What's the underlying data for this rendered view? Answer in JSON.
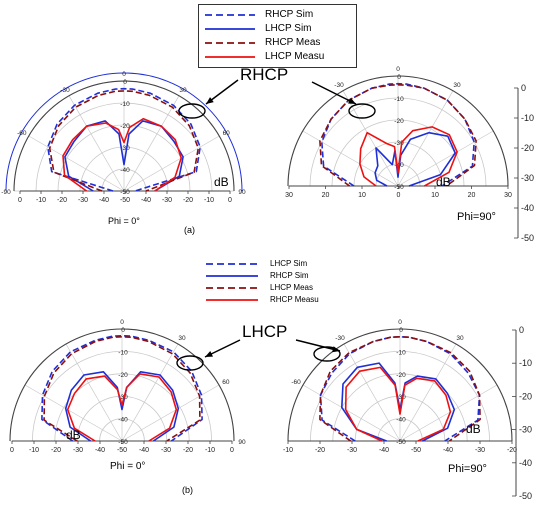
{
  "colors": {
    "blue": "#1f2fd6",
    "darkred": "#8b0f0f",
    "red": "#ee1111",
    "axis": "#777777",
    "grid": "#c9c9c9"
  },
  "legend_a": [
    {
      "label": "RHCP Sim",
      "color": "#1f2fd6",
      "dash": "dashed"
    },
    {
      "label": "LHCP Sim",
      "color": "#1f2fd6",
      "dash": "solid"
    },
    {
      "label": "RHCP Meas",
      "color": "#8b0f0f",
      "dash": "dashed"
    },
    {
      "label": "LHCP Measu",
      "color": "#ee1111",
      "dash": "solid"
    }
  ],
  "legend_b": [
    {
      "label": "LHCP Sim",
      "color": "#1f2fd6",
      "dash": "dashed"
    },
    {
      "label": "RHCP Sim",
      "color": "#1f2fd6",
      "dash": "solid"
    },
    {
      "label": "LHCP Meas",
      "color": "#8b0f0f",
      "dash": "dashed"
    },
    {
      "label": "RHCP Measu",
      "color": "#ee1111",
      "dash": "solid"
    }
  ],
  "labels": {
    "callout_a": "RHCP",
    "callout_b": "LHCP",
    "panel_a": "(a)",
    "panel_b": "(b)"
  },
  "side_axis_a": {
    "ticks": [
      "0",
      "-10",
      "-20",
      "-30",
      "-40",
      "-50"
    ]
  },
  "side_axis_b": {
    "ticks": [
      "0",
      "-10",
      "-20",
      "-30",
      "-40",
      "-50"
    ]
  },
  "chart_data": [
    {
      "type": "polar-line",
      "panel": "a",
      "name": "Phi = 0°",
      "cut_label": "Phi = 0°",
      "unit": "dB",
      "rlim": [
        -50,
        0
      ],
      "radial_ticks": [
        "0",
        "-10",
        "-20",
        "-30",
        "-40",
        "-50"
      ],
      "angle_ticks": [
        "0",
        "30",
        "60",
        "90",
        "-30",
        "-60",
        "-90"
      ],
      "bottom_ticks": [
        "0",
        "-10",
        "-20",
        "-30",
        "-40",
        "-50",
        "-40",
        "-30",
        "-20",
        "-10",
        "0"
      ],
      "angles": [
        -90,
        -75,
        -60,
        -45,
        -30,
        -15,
        -5,
        0,
        5,
        15,
        30,
        45,
        60,
        75,
        90
      ],
      "series": [
        {
          "name": "RHCP Sim",
          "color": "#1f2fd6",
          "dash": "dashed",
          "values": [
            -45,
            -16,
            -10,
            -7,
            -5,
            -4,
            -3.5,
            -3.5,
            -3.5,
            -4,
            -5,
            -7,
            -10,
            -16,
            -45
          ]
        },
        {
          "name": "LHCP Sim",
          "color": "#1f2fd6",
          "dash": "solid",
          "values": [
            -36,
            -24,
            -19,
            -18,
            -16,
            -17,
            -24,
            -38,
            -24,
            -17,
            -16,
            -18,
            -19,
            -24,
            -36
          ]
        },
        {
          "name": "RHCP Meas",
          "color": "#8b0f0f",
          "dash": "dashed",
          "values": [
            -40,
            -17,
            -11,
            -8,
            -6,
            -5,
            -4.5,
            -4.5,
            -4.5,
            -5,
            -6,
            -8,
            -11,
            -17,
            -40
          ]
        },
        {
          "name": "LHCP Measu",
          "color": "#ee1111",
          "dash": "solid",
          "values": [
            -33,
            -22,
            -18,
            -17,
            -16,
            -18,
            -22,
            -28,
            -21,
            -16,
            -16,
            -17,
            -20,
            -26,
            -36
          ]
        }
      ]
    },
    {
      "type": "polar-line",
      "panel": "a",
      "name": "Phi=90°",
      "cut_label": "Phi=90°",
      "unit": "dB",
      "rlim": [
        -50,
        0
      ],
      "radial_ticks": [
        "0",
        "-10",
        "-20",
        "-30",
        "-40",
        "-50"
      ],
      "angle_ticks": [
        "0",
        "30",
        "-30"
      ],
      "bottom_ticks": [
        "30",
        "20",
        "10",
        "0",
        "10",
        "20",
        "30"
      ],
      "angles": [
        -90,
        -75,
        -60,
        -45,
        -30,
        -15,
        -5,
        0,
        5,
        15,
        30,
        45,
        60,
        75,
        90
      ],
      "series": [
        {
          "name": "RHCP Sim",
          "color": "#1f2fd6",
          "dash": "dashed",
          "values": [
            -30,
            -15,
            -10,
            -7,
            -5,
            -4,
            -3.5,
            -3.5,
            -3.5,
            -4,
            -5,
            -7,
            -10,
            -15,
            -30
          ]
        },
        {
          "name": "LHCP Sim",
          "color": "#1f2fd6",
          "dash": "solid",
          "values": [
            -45,
            -40,
            -38,
            -37,
            -30,
            -40,
            -34,
            -46,
            -36,
            -28,
            -22,
            -18,
            -20,
            -30,
            -45
          ]
        },
        {
          "name": "RHCP Meas",
          "color": "#8b0f0f",
          "dash": "dashed",
          "values": [
            -28,
            -14,
            -9,
            -7,
            -5,
            -4,
            -4,
            -4,
            -4,
            -4,
            -5,
            -7,
            -9,
            -14,
            -28
          ]
        },
        {
          "name": "LHCP Measu",
          "color": "#ee1111",
          "dash": "solid",
          "values": [
            -40,
            -34,
            -30,
            -26,
            -22,
            -30,
            -32,
            -44,
            -30,
            -24,
            -19,
            -17,
            -19,
            -26,
            -38
          ]
        }
      ]
    },
    {
      "type": "polar-line",
      "panel": "b",
      "name": "Phi = 0°",
      "cut_label": "Phi = 0°",
      "unit": "dB",
      "rlim": [
        -50,
        0
      ],
      "radial_ticks": [
        "0",
        "-10",
        "-20",
        "-30",
        "-40",
        "-50"
      ],
      "angle_ticks": [
        "0",
        "30",
        "60",
        "90"
      ],
      "bottom_ticks": [
        "0",
        "-10",
        "-20",
        "-30",
        "-40",
        "-50",
        "-40",
        "-30",
        "-20",
        "-10",
        "0"
      ],
      "angles": [
        -90,
        -75,
        -60,
        -45,
        -30,
        -15,
        -5,
        0,
        5,
        15,
        30,
        45,
        60,
        75,
        90
      ],
      "series": [
        {
          "name": "LHCP Sim",
          "color": "#1f2fd6",
          "dash": "dashed",
          "values": [
            -28,
            -13,
            -9,
            -6,
            -4,
            -3.5,
            -3,
            -3,
            -3,
            -3.5,
            -4,
            -6,
            -9,
            -13,
            -28
          ]
        },
        {
          "name": "RHCP Sim",
          "color": "#1f2fd6",
          "dash": "solid",
          "values": [
            -36,
            -26,
            -21,
            -18,
            -16,
            -18,
            -26,
            -36,
            -26,
            -18,
            -16,
            -18,
            -21,
            -26,
            -36
          ]
        },
        {
          "name": "LHCP Meas",
          "color": "#8b0f0f",
          "dash": "dashed",
          "values": [
            -30,
            -14,
            -10,
            -7,
            -5,
            -4,
            -3.5,
            -3.5,
            -3.5,
            -4,
            -5,
            -7,
            -10,
            -14,
            -30
          ]
        },
        {
          "name": "RHCP Measu",
          "color": "#ee1111",
          "dash": "solid",
          "values": [
            -38,
            -28,
            -22,
            -20,
            -18,
            -20,
            -27,
            -34,
            -26,
            -19,
            -17,
            -19,
            -22,
            -28,
            -38
          ]
        }
      ]
    },
    {
      "type": "polar-line",
      "panel": "b",
      "name": "Phi=90°",
      "cut_label": "Phi=90°",
      "unit": "dB",
      "rlim": [
        -50,
        0
      ],
      "radial_ticks": [
        "0",
        "-10",
        "-20",
        "-30",
        "-40",
        "-50"
      ],
      "angle_ticks": [
        "0",
        "30",
        "-30",
        "-60"
      ],
      "bottom_ticks": [
        "-10",
        "-20",
        "-30",
        "-40",
        "-50",
        "-40",
        "-30",
        "-20"
      ],
      "angles": [
        -90,
        -75,
        -60,
        -45,
        -30,
        -15,
        -5,
        0,
        5,
        15,
        30,
        45,
        60,
        75,
        90
      ],
      "series": [
        {
          "name": "LHCP Sim",
          "color": "#1f2fd6",
          "dash": "dashed",
          "values": [
            -30,
            -14,
            -9,
            -7,
            -5,
            -4,
            -3.5,
            -3.5,
            -3.5,
            -4,
            -5,
            -7,
            -9,
            -14,
            -30
          ]
        },
        {
          "name": "RHCP Sim",
          "color": "#1f2fd6",
          "dash": "solid",
          "values": [
            -44,
            -30,
            -20,
            -14,
            -12,
            -14,
            -24,
            -36,
            -24,
            -20,
            -18,
            -20,
            -22,
            -28,
            -40
          ]
        },
        {
          "name": "LHCP Meas",
          "color": "#8b0f0f",
          "dash": "dashed",
          "values": [
            -28,
            -13,
            -9,
            -6,
            -4.5,
            -4,
            -3.5,
            -3.5,
            -3.5,
            -4,
            -4.5,
            -6,
            -9,
            -13,
            -28
          ]
        },
        {
          "name": "RHCP Measu",
          "color": "#ee1111",
          "dash": "solid",
          "values": [
            -42,
            -30,
            -22,
            -16,
            -14,
            -16,
            -25,
            -38,
            -25,
            -21,
            -19,
            -21,
            -24,
            -30,
            -42
          ]
        }
      ]
    }
  ]
}
